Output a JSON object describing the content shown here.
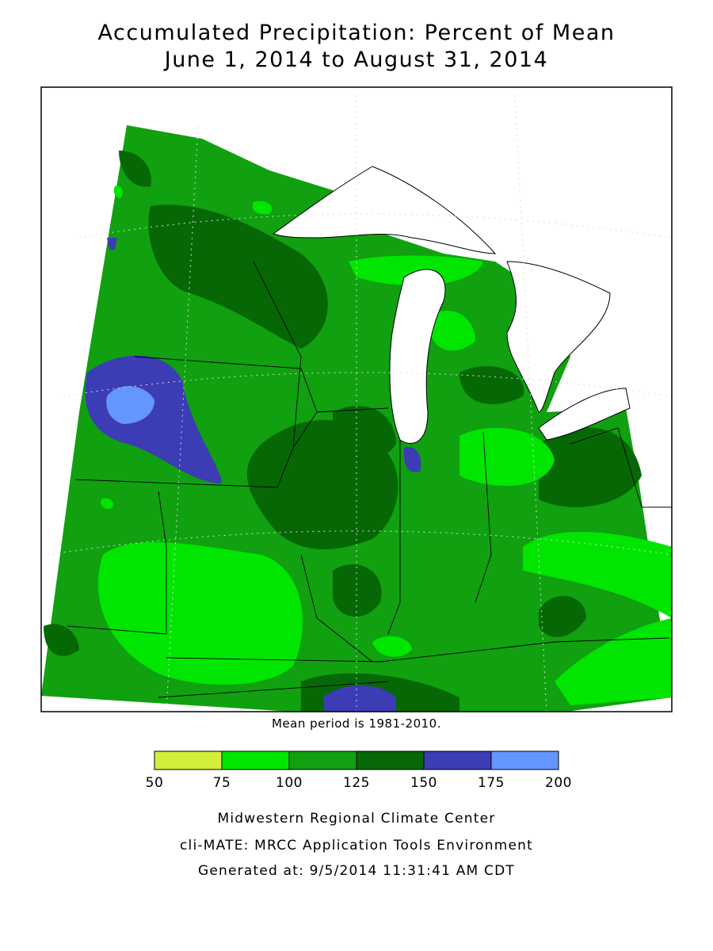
{
  "title": [
    "Accumulated Precipitation: Percent of Mean",
    "June 1, 2014 to August 31, 2014"
  ],
  "note": "Mean period is 1981-2010.",
  "legend": {
    "bins": [
      50,
      75,
      100,
      125,
      150,
      175,
      200
    ],
    "colors": [
      "#d4ee3c",
      "#00e600",
      "#10a010",
      "#056805",
      "#3c3cb4",
      "#6496ff"
    ]
  },
  "footer": [
    "Midwestern Regional Climate Center",
    "cli-MATE: MRCC Application Tools Environment",
    "Generated at: 9/5/2014 11:31:41 AM CDT"
  ]
}
